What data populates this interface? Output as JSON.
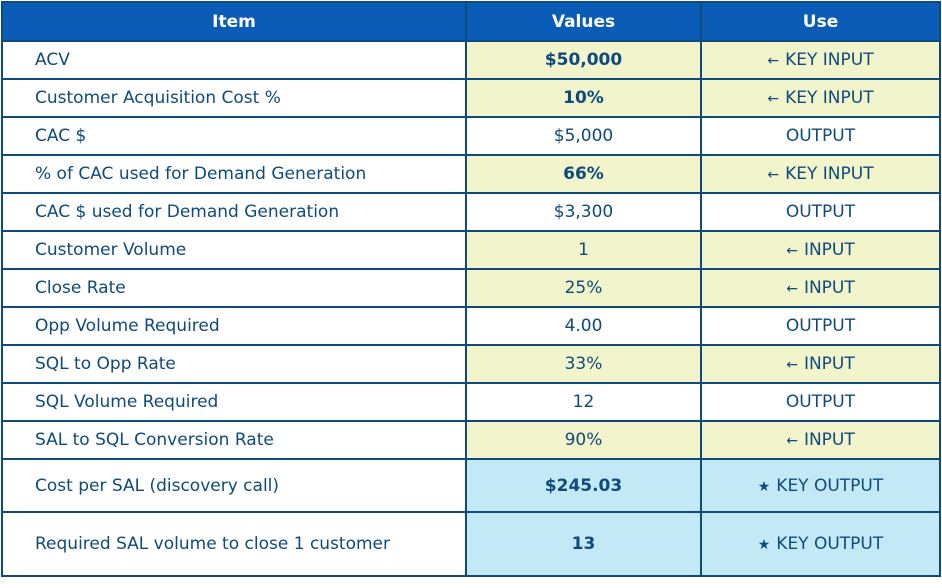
{
  "headers": [
    "Item",
    "Values",
    "Use"
  ],
  "colors": {
    "header": "#0b5cb7",
    "input_fill": "#f2f4cc",
    "output_fill": "#c3e9f6",
    "text": "#0e4a7c"
  },
  "rows": [
    {
      "item": "ACV",
      "value": "$50,000",
      "use": "KEY INPUT",
      "icon": "arrow-left-icon",
      "style": "yellow",
      "bold": true
    },
    {
      "item": "Customer Acquisition Cost %",
      "value": "10%",
      "use": "KEY INPUT",
      "icon": "arrow-left-icon",
      "style": "yellow",
      "bold": true
    },
    {
      "item": "CAC $",
      "value": "$5,000",
      "use": "OUTPUT",
      "icon": "",
      "style": "white",
      "bold": false
    },
    {
      "item": "% of CAC used for Demand Generation",
      "value": "66%",
      "use": "KEY INPUT",
      "icon": "arrow-left-icon",
      "style": "yellow",
      "bold": true
    },
    {
      "item": "CAC $ used for Demand Generation",
      "value": "$3,300",
      "use": "OUTPUT",
      "icon": "",
      "style": "white",
      "bold": false
    },
    {
      "item": "Customer Volume",
      "value": "1",
      "use": "INPUT",
      "icon": "arrow-left-icon",
      "style": "yellow",
      "bold": false
    },
    {
      "item": "Close Rate",
      "value": "25%",
      "use": "INPUT",
      "icon": "arrow-left-icon",
      "style": "yellow",
      "bold": false
    },
    {
      "item": "Opp Volume Required",
      "value": "4.00",
      "use": "OUTPUT",
      "icon": "",
      "style": "white",
      "bold": false
    },
    {
      "item": "SQL to Opp Rate",
      "value": "33%",
      "use": "INPUT",
      "icon": "arrow-left-icon",
      "style": "yellow",
      "bold": false
    },
    {
      "item": "SQL Volume Required",
      "value": "12",
      "use": "OUTPUT",
      "icon": "",
      "style": "white",
      "bold": false
    },
    {
      "item": "SAL to SQL Conversion Rate",
      "value": "90%",
      "use": "INPUT",
      "icon": "arrow-left-icon",
      "style": "yellow",
      "bold": false
    },
    {
      "item": "Cost per SAL (discovery call)",
      "value": "$245.03",
      "use": "KEY OUTPUT",
      "icon": "star-icon",
      "style": "blue",
      "bold": true
    },
    {
      "item": "Required SAL volume to close 1 customer",
      "value": "13",
      "use": "KEY OUTPUT",
      "icon": "star-icon",
      "style": "blue",
      "bold": true
    }
  ]
}
